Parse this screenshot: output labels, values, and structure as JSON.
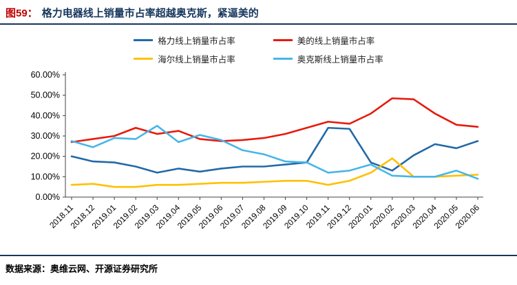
{
  "header": {
    "figure_label": "图59：",
    "title": "格力电器线上销量市占率超越奥克斯，紧逼美的"
  },
  "footer": {
    "source_label": "数据来源：",
    "source_text": "奥维云网、开源证券研究所"
  },
  "colors": {
    "title_red": "#c00000",
    "navy": "#16365c",
    "axis": "#404040"
  },
  "chart_data": {
    "type": "line",
    "title": "",
    "xlabel": "",
    "ylabel": "",
    "ylim": [
      0,
      60
    ],
    "ytick_step": 10,
    "ytick_format": "0.00%",
    "grid": false,
    "legend_position": "top",
    "x": [
      "2018.11",
      "2018.12",
      "2019.01",
      "2019.02",
      "2019.03",
      "2019.04",
      "2019.05",
      "2019.06",
      "2019.07",
      "2019.08",
      "2019.09",
      "2019.10",
      "2019.11",
      "2019.12",
      "2020.01",
      "2020.02",
      "2020.03",
      "2020.04",
      "2020.05",
      "2020.06"
    ],
    "series": [
      {
        "name": "格力线上销量市占率",
        "color": "#2269a8",
        "values": [
          20,
          17.5,
          17,
          15,
          12,
          14,
          12.5,
          14,
          15,
          15,
          16,
          17,
          34,
          33.5,
          17,
          13,
          20.5,
          26,
          24,
          27.5
        ]
      },
      {
        "name": "美的线上销量市占率",
        "color": "#e8190c",
        "values": [
          27,
          28.5,
          30,
          34,
          31,
          32.5,
          28.5,
          27.5,
          28,
          29,
          31,
          34,
          37,
          36,
          41,
          48.5,
          48,
          41,
          35.5,
          34.5
        ]
      },
      {
        "name": "海尔线上销量市占率",
        "color": "#ffc000",
        "values": [
          6,
          6.5,
          5,
          5,
          6,
          6,
          6.5,
          7,
          7,
          7.5,
          8,
          8,
          6,
          8,
          12,
          19,
          10,
          10,
          10.5,
          11
        ]
      },
      {
        "name": "奥克斯线上销量市占率",
        "color": "#45b6e8",
        "values": [
          27.5,
          24.5,
          29,
          28.5,
          35,
          27,
          30.5,
          28,
          23,
          21,
          17.5,
          17,
          12,
          13,
          16,
          10.5,
          10,
          10,
          13,
          9
        ]
      }
    ]
  }
}
